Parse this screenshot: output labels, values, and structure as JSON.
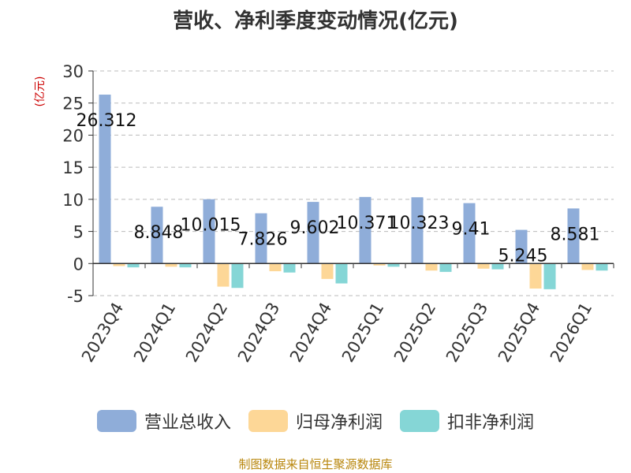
{
  "title": "营收、净利季度变动情况(亿元)",
  "y_unit_label": "(亿元)",
  "source": "制图数据来自恒生聚源数据库",
  "colors": {
    "revenue": "#8fadd9",
    "net_profit": "#fdd797",
    "deducted_net_profit": "#85d6d6",
    "grid": "#bbbbbb",
    "axis": "#333333"
  },
  "chart_data": {
    "type": "bar",
    "title": "营收、净利季度变动情况(亿元)",
    "ylabel": "(亿元)",
    "xlabel": "",
    "ylim": [
      -5,
      30
    ],
    "yticks": [
      -5,
      0,
      5,
      10,
      15,
      20,
      25,
      30
    ],
    "grid": true,
    "legend_position": "bottom",
    "categories": [
      "2023Q4",
      "2024Q1",
      "2024Q2",
      "2024Q3",
      "2024Q4",
      "2025Q1",
      "2025Q2",
      "2025Q3",
      "2025Q4",
      "2026Q1"
    ],
    "series": [
      {
        "name": "营业总收入",
        "color": "#8fadd9",
        "values": [
          26.312,
          8.848,
          10.015,
          7.826,
          9.602,
          10.371,
          10.323,
          9.41,
          5.245,
          8.581
        ],
        "labels": [
          "26.312",
          "8.848",
          "10.015",
          "7.826",
          "9.602",
          "10.371",
          "10.323",
          "9.41",
          "5.245",
          "8.581"
        ]
      },
      {
        "name": "归母净利润",
        "color": "#fdd797",
        "values": [
          -0.4,
          -0.5,
          -3.6,
          -1.2,
          -2.4,
          -0.3,
          -1.1,
          -0.8,
          -3.9,
          -1.0
        ]
      },
      {
        "name": "扣非净利润",
        "color": "#85d6d6",
        "values": [
          -0.6,
          -0.6,
          -3.8,
          -1.4,
          -3.1,
          -0.5,
          -1.3,
          -0.9,
          -4.0,
          -1.1
        ]
      }
    ]
  }
}
